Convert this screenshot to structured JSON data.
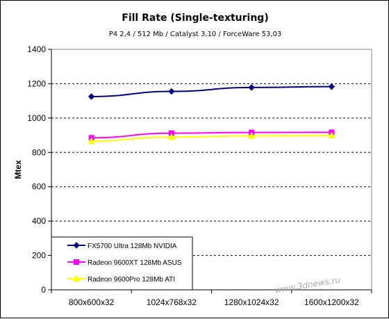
{
  "chart_data": {
    "type": "line",
    "title": "Fill Rate (Single-texturing)",
    "subtitle": "P4 2,4 / 512 Mb / Catalyst 3,10 / ForceWare 53,03",
    "ylabel": "Mtex",
    "xlabel": "",
    "categories": [
      "800x600x32",
      "1024x768x32",
      "1280x1024x32",
      "1600x1200x32"
    ],
    "ylim": [
      0,
      1400
    ],
    "yticks": [
      0,
      200,
      400,
      600,
      800,
      1000,
      1200,
      1400
    ],
    "grid": true,
    "legend_position": "bottom-left",
    "series": [
      {
        "name": "FX5700 Ultra 128Mb NVIDIA",
        "values": [
          1125,
          1155,
          1178,
          1183
        ],
        "color": "#000080",
        "marker": "diamond"
      },
      {
        "name": "Radeon 9600XT 128Mb ASUS",
        "values": [
          885,
          912,
          916,
          917
        ],
        "color": "#ff00ff",
        "marker": "square"
      },
      {
        "name": "Radeon 9600Pro 128Mb ATI",
        "values": [
          866,
          889,
          896,
          898
        ],
        "color": "#ffff00",
        "marker": "triangle"
      }
    ],
    "watermark": "www.3dnews.ru"
  }
}
